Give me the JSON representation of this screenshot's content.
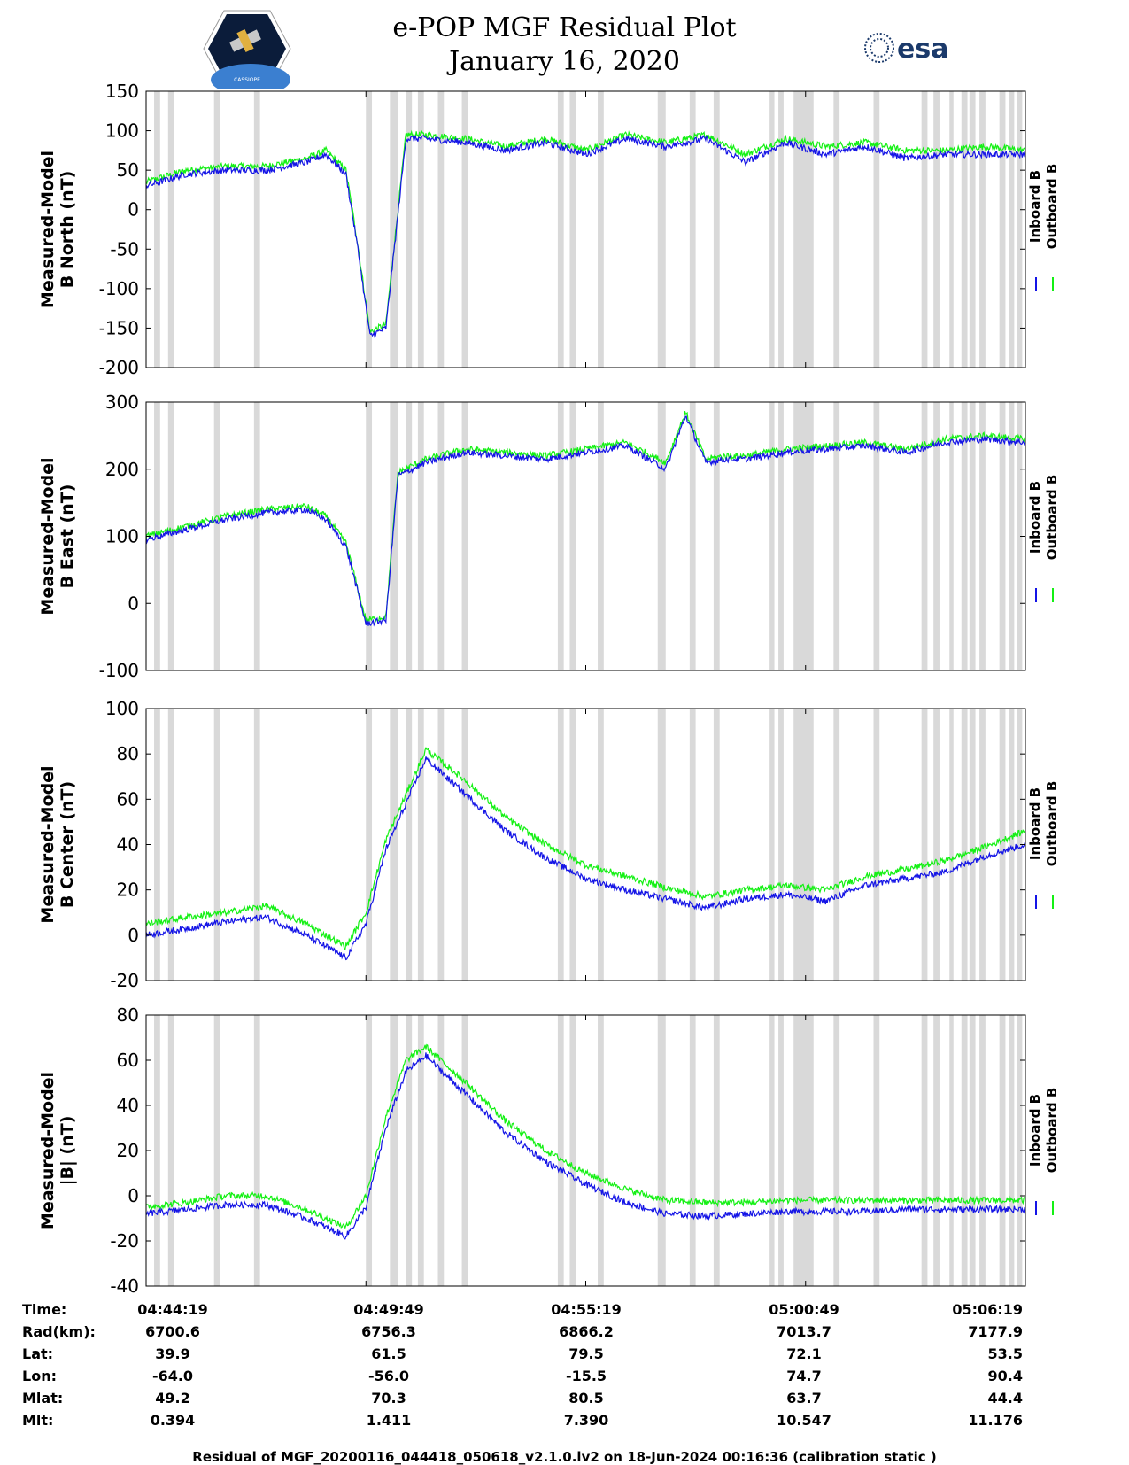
{
  "title_line1": "e-POP MGF Residual Plot",
  "title_line2": "January 16, 2020",
  "logo_left": {
    "icon": "satellite-mission-badge-icon",
    "text": "CASSIOPE"
  },
  "logo_right": {
    "icon": "esa-logo-icon",
    "text": "esa"
  },
  "colors": {
    "inboard": "#1414e6",
    "outboard": "#14f014",
    "gap": "#d9d9d9"
  },
  "legend": {
    "inboard": "Inboard B",
    "outboard": "Outboard B"
  },
  "chart_data": [
    {
      "type": "line",
      "ylabel_line1": "Measured-Model",
      "ylabel_line2": "B North (nT)",
      "ylim": [
        -200,
        150
      ],
      "yticks": [
        150,
        100,
        50,
        0,
        -50,
        -100,
        -150,
        -200
      ],
      "x_minutes": [
        0,
        1,
        2,
        3,
        4,
        4.5,
        5,
        5.3,
        5.6,
        6,
        6.5,
        7,
        8,
        9,
        10,
        11,
        12,
        13,
        14,
        15,
        16,
        17,
        18,
        19,
        20,
        21,
        22
      ],
      "series": [
        {
          "name": "Inboard B",
          "values": [
            30,
            45,
            50,
            50,
            60,
            70,
            45,
            -50,
            -160,
            -150,
            90,
            90,
            85,
            75,
            85,
            70,
            90,
            80,
            90,
            60,
            85,
            70,
            80,
            65,
            70,
            70,
            70
          ]
        },
        {
          "name": "Outboard B",
          "values": [
            35,
            50,
            55,
            55,
            65,
            75,
            50,
            -45,
            -155,
            -145,
            95,
            95,
            90,
            80,
            90,
            75,
            95,
            85,
            95,
            70,
            90,
            80,
            85,
            75,
            75,
            80,
            75
          ]
        }
      ]
    },
    {
      "type": "line",
      "ylabel_line1": "Measured-Model",
      "ylabel_line2": "B East (nT)",
      "ylim": [
        -100,
        300
      ],
      "yticks": [
        300,
        200,
        100,
        0,
        -100
      ],
      "x_minutes": [
        0,
        1,
        2,
        3,
        4,
        4.5,
        5,
        5.5,
        6,
        6.3,
        7,
        8,
        9,
        10,
        11,
        12,
        13,
        13.5,
        14,
        14.5,
        15,
        16,
        17,
        18,
        19,
        20,
        21,
        22
      ],
      "series": [
        {
          "name": "Inboard B",
          "values": [
            95,
            110,
            125,
            135,
            140,
            125,
            85,
            -30,
            -25,
            190,
            210,
            225,
            220,
            215,
            225,
            235,
            200,
            280,
            210,
            215,
            215,
            225,
            230,
            235,
            225,
            240,
            245,
            240
          ]
        },
        {
          "name": "Outboard B",
          "values": [
            100,
            115,
            130,
            140,
            145,
            130,
            90,
            -25,
            -20,
            195,
            215,
            230,
            225,
            220,
            230,
            240,
            210,
            285,
            215,
            220,
            220,
            230,
            235,
            240,
            230,
            245,
            250,
            245
          ]
        }
      ]
    },
    {
      "type": "line",
      "ylabel_line1": "Measured-Model",
      "ylabel_line2": "B Center (nT)",
      "ylim": [
        -20,
        100
      ],
      "yticks": [
        100,
        80,
        60,
        40,
        20,
        0,
        -20
      ],
      "x_minutes": [
        0,
        1,
        2,
        3,
        4,
        5,
        5.5,
        6,
        6.5,
        7,
        8,
        9,
        10,
        11,
        12,
        13,
        14,
        15,
        16,
        17,
        18,
        19,
        20,
        21,
        22
      ],
      "series": [
        {
          "name": "Inboard B",
          "values": [
            0,
            3,
            6,
            8,
            0,
            -10,
            5,
            38,
            58,
            78,
            62,
            46,
            34,
            25,
            20,
            16,
            12,
            16,
            18,
            15,
            22,
            25,
            28,
            35,
            40
          ]
        },
        {
          "name": "Outboard B",
          "values": [
            5,
            8,
            10,
            13,
            5,
            -5,
            10,
            42,
            62,
            82,
            68,
            52,
            40,
            31,
            26,
            21,
            17,
            20,
            22,
            20,
            26,
            29,
            33,
            39,
            46
          ]
        }
      ]
    },
    {
      "type": "line",
      "ylabel_line1": "Measured-Model",
      "ylabel_line2": "|B| (nT)",
      "ylim": [
        -40,
        80
      ],
      "yticks": [
        80,
        60,
        40,
        20,
        0,
        -20,
        -40
      ],
      "x_minutes": [
        0,
        1,
        2,
        3,
        4,
        5,
        5.5,
        6,
        6.5,
        7,
        8,
        9,
        10,
        11,
        12,
        13,
        14,
        15,
        16,
        17,
        18,
        19,
        20,
        21,
        22
      ],
      "series": [
        {
          "name": "Inboard B",
          "values": [
            -8,
            -6,
            -4,
            -4,
            -10,
            -18,
            -5,
            30,
            55,
            62,
            45,
            28,
            15,
            5,
            -3,
            -8,
            -9,
            -8,
            -7,
            -7,
            -7,
            -6,
            -6,
            -6,
            -6
          ]
        },
        {
          "name": "Outboard B",
          "values": [
            -5,
            -3,
            0,
            0,
            -6,
            -14,
            0,
            35,
            60,
            66,
            50,
            33,
            20,
            10,
            3,
            -2,
            -3,
            -3,
            -2,
            -2,
            -2,
            -2,
            -2,
            -2,
            -2
          ]
        }
      ]
    }
  ],
  "data_gaps_minutes": [
    [
      0.2,
      0.35
    ],
    [
      0.55,
      0.7
    ],
    [
      1.7,
      1.85
    ],
    [
      2.7,
      2.85
    ],
    [
      5.5,
      5.65
    ],
    [
      6.1,
      6.3
    ],
    [
      6.5,
      6.65
    ],
    [
      6.8,
      6.95
    ],
    [
      7.3,
      7.45
    ],
    [
      7.9,
      8.05
    ],
    [
      10.3,
      10.45
    ],
    [
      10.6,
      10.75
    ],
    [
      11.3,
      11.45
    ],
    [
      12.8,
      13.0
    ],
    [
      13.6,
      13.75
    ],
    [
      14.2,
      14.35
    ],
    [
      15.6,
      15.72
    ],
    [
      15.82,
      15.95
    ],
    [
      16.2,
      16.7
    ],
    [
      17.2,
      17.35
    ],
    [
      18.2,
      18.35
    ],
    [
      19.4,
      19.55
    ],
    [
      19.7,
      19.85
    ],
    [
      20.1,
      20.2
    ],
    [
      20.4,
      20.55
    ],
    [
      20.6,
      20.75
    ],
    [
      20.85,
      21.0
    ],
    [
      21.35,
      21.5
    ],
    [
      21.6,
      21.72
    ],
    [
      21.8,
      21.92
    ]
  ],
  "x_axis": {
    "range_minutes": [
      0,
      22
    ],
    "tick_minutes": [
      0,
      5.5,
      11,
      16.5,
      22
    ]
  },
  "ephemeris": {
    "labels": [
      "Time:",
      "Rad(km):",
      "Lat:",
      "Lon:",
      "Mlat:",
      "Mlt:"
    ],
    "columns": [
      [
        "04:44:19",
        "6700.6",
        "39.9",
        "-64.0",
        "49.2",
        "0.394"
      ],
      [
        "04:49:49",
        "6756.3",
        "61.5",
        "-56.0",
        "70.3",
        "1.411"
      ],
      [
        "04:55:19",
        "6866.2",
        "79.5",
        "-15.5",
        "80.5",
        "7.390"
      ],
      [
        "05:00:49",
        "7013.7",
        "72.1",
        "74.7",
        "63.7",
        "10.547"
      ],
      [
        "05:06:19",
        "7177.9",
        "53.5",
        "90.4",
        "44.4",
        "11.176"
      ]
    ]
  },
  "footer": "Residual of MGF_20200116_044418_050618_v2.1.0.lv2 on 18-Jun-2024 00:16:36 (calibration static )"
}
